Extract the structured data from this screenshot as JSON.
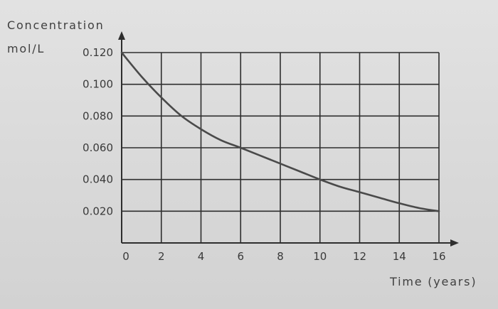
{
  "chart_data": {
    "type": "line",
    "title": "",
    "ylabel": "Concentration",
    "yunit": "mol/L",
    "xlabel": "Time (years)",
    "xlim": [
      0,
      16
    ],
    "ylim": [
      0,
      0.12
    ],
    "grid": true,
    "x_ticks": [
      {
        "value": 0,
        "label": "0"
      },
      {
        "value": 2,
        "label": "2"
      },
      {
        "value": 4,
        "label": "4"
      },
      {
        "value": 6,
        "label": "6"
      },
      {
        "value": 8,
        "label": "8"
      },
      {
        "value": 10,
        "label": "10"
      },
      {
        "value": 12,
        "label": "12"
      },
      {
        "value": 14,
        "label": "14"
      },
      {
        "value": 16,
        "label": "16"
      }
    ],
    "y_ticks": [
      {
        "value": 0.02,
        "label": "0.020"
      },
      {
        "value": 0.04,
        "label": "0.040"
      },
      {
        "value": 0.06,
        "label": "0.060"
      },
      {
        "value": 0.08,
        "label": "0.080"
      },
      {
        "value": 0.1,
        "label": "0.100"
      },
      {
        "value": 0.12,
        "label": "0.120"
      }
    ],
    "series": [
      {
        "x": [
          0,
          1,
          2,
          3,
          4,
          5,
          6,
          7,
          8,
          9,
          10,
          11,
          12,
          13,
          14,
          15,
          16
        ],
        "y": [
          0.12,
          0.1049,
          0.0917,
          0.0802,
          0.0717,
          0.0648,
          0.06,
          0.055,
          0.05,
          0.045,
          0.04,
          0.0355,
          0.032,
          0.0285,
          0.025,
          0.022,
          0.02
        ]
      }
    ]
  },
  "colors": {
    "curve": "#4a4a4a",
    "grid": "#2e2e2e",
    "text": "#3a3a3a"
  }
}
